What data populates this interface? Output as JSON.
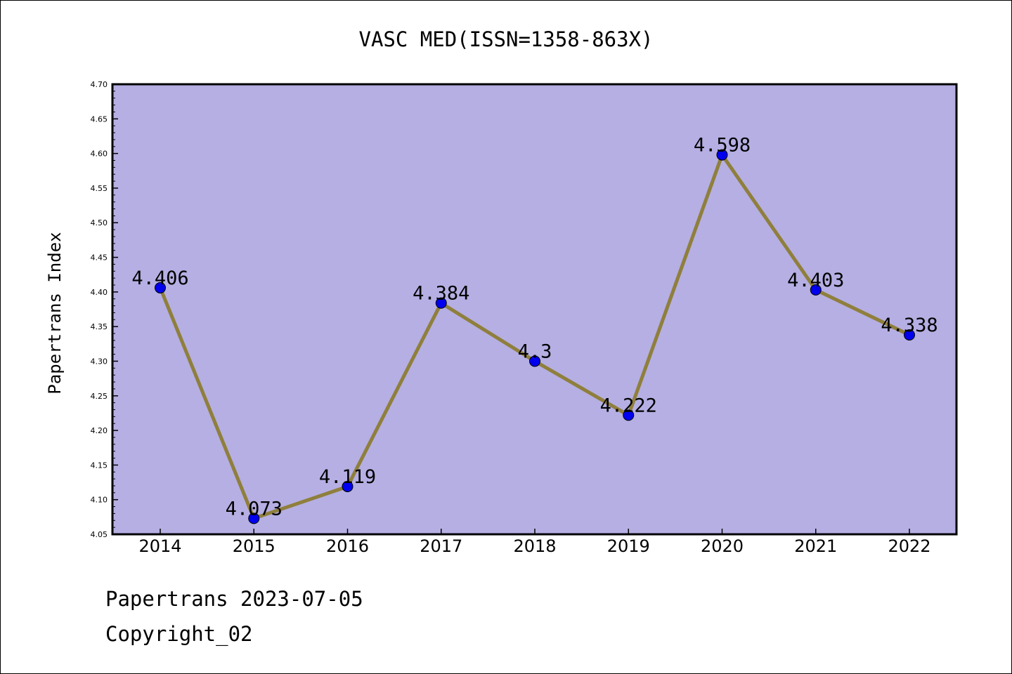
{
  "chart_data": {
    "type": "line",
    "title": "VASC MED(ISSN=1358-863X)",
    "xlabel": "",
    "ylabel": "Papertrans Index",
    "categories": [
      "2014",
      "2015",
      "2016",
      "2017",
      "2018",
      "2019",
      "2020",
      "2021",
      "2022"
    ],
    "values": [
      4.406,
      4.073,
      4.119,
      4.384,
      4.3,
      4.222,
      4.598,
      4.403,
      4.338
    ],
    "data_labels": [
      "4.406",
      "4.073",
      "4.119",
      "4.384",
      "4.3",
      "4.222",
      "4.598",
      "4.403",
      "4.338"
    ],
    "ylim": [
      4.05,
      4.7
    ],
    "yticks": [
      "4.05",
      "4.10",
      "4.15",
      "4.20",
      "4.25",
      "4.30",
      "4.35",
      "4.40",
      "4.45",
      "4.50",
      "4.55",
      "4.60",
      "4.65",
      "4.70"
    ],
    "grid": false,
    "legend": "none",
    "colors": {
      "plot_background": "#b5afe3",
      "line": "#8f7f3c",
      "marker": "#0000ee"
    }
  },
  "footer": {
    "line1": "Papertrans 2023-07-05",
    "line2": "Copyright_02"
  }
}
